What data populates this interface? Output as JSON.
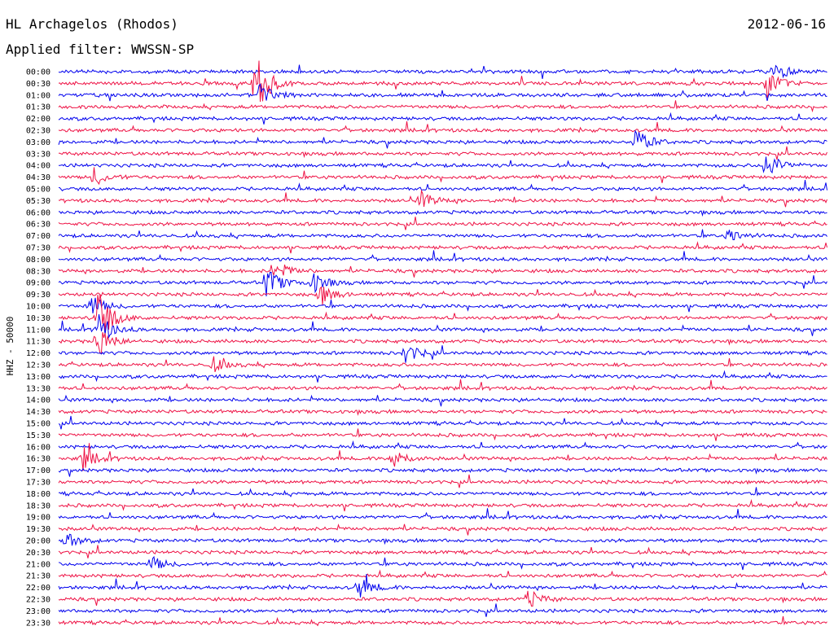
{
  "header": {
    "station": "HL Archagelos (Rhodos)",
    "date": "2012-06-16",
    "filter": "Applied filter: WWSSN-SP"
  },
  "y_axis_label": "HHZ - 50000",
  "colors": {
    "even": "#0000ee",
    "odd": "#ee1144",
    "text": "#000000"
  },
  "chart_data": {
    "type": "line",
    "title": "",
    "y_ticks": [
      "00:00",
      "00:30",
      "01:00",
      "01:30",
      "02:00",
      "02:30",
      "03:00",
      "03:30",
      "04:00",
      "04:30",
      "05:00",
      "05:30",
      "06:00",
      "06:30",
      "07:00",
      "07:30",
      "08:00",
      "08:30",
      "09:00",
      "09:30",
      "10:00",
      "10:30",
      "11:00",
      "11:30",
      "12:00",
      "12:30",
      "13:00",
      "13:30",
      "14:00",
      "14:30",
      "15:00",
      "15:30",
      "16:00",
      "16:30",
      "17:00",
      "17:30",
      "18:00",
      "18:30",
      "19:00",
      "19:30",
      "20:00",
      "20:30",
      "21:00",
      "21:30",
      "22:00",
      "22:30",
      "23:00",
      "23:30"
    ],
    "ylabel": "HHZ - 50000",
    "grid": false,
    "legend": "none",
    "events": [
      {
        "row": 0,
        "x": 0.93,
        "amp": 12
      },
      {
        "row": 1,
        "x": 0.255,
        "amp": 45
      },
      {
        "row": 1,
        "x": 0.92,
        "amp": 18
      },
      {
        "row": 2,
        "x": 0.26,
        "amp": 18
      },
      {
        "row": 6,
        "x": 0.75,
        "amp": 18
      },
      {
        "row": 8,
        "x": 0.92,
        "amp": 20
      },
      {
        "row": 9,
        "x": 0.045,
        "amp": 12
      },
      {
        "row": 11,
        "x": 0.47,
        "amp": 12
      },
      {
        "row": 14,
        "x": 0.87,
        "amp": 10
      },
      {
        "row": 17,
        "x": 0.28,
        "amp": 14
      },
      {
        "row": 18,
        "x": 0.27,
        "amp": 20
      },
      {
        "row": 18,
        "x": 0.33,
        "amp": 14
      },
      {
        "row": 19,
        "x": 0.34,
        "amp": 14
      },
      {
        "row": 20,
        "x": 0.04,
        "amp": 16
      },
      {
        "row": 21,
        "x": 0.05,
        "amp": 40
      },
      {
        "row": 22,
        "x": 0.05,
        "amp": 22
      },
      {
        "row": 23,
        "x": 0.05,
        "amp": 20
      },
      {
        "row": 24,
        "x": 0.45,
        "amp": 14
      },
      {
        "row": 25,
        "x": 0.2,
        "amp": 10
      },
      {
        "row": 33,
        "x": 0.03,
        "amp": 16
      },
      {
        "row": 33,
        "x": 0.43,
        "amp": 18
      },
      {
        "row": 40,
        "x": 0.01,
        "amp": 10
      },
      {
        "row": 42,
        "x": 0.12,
        "amp": 10
      },
      {
        "row": 44,
        "x": 0.39,
        "amp": 14
      },
      {
        "row": 45,
        "x": 0.61,
        "amp": 12
      }
    ]
  }
}
